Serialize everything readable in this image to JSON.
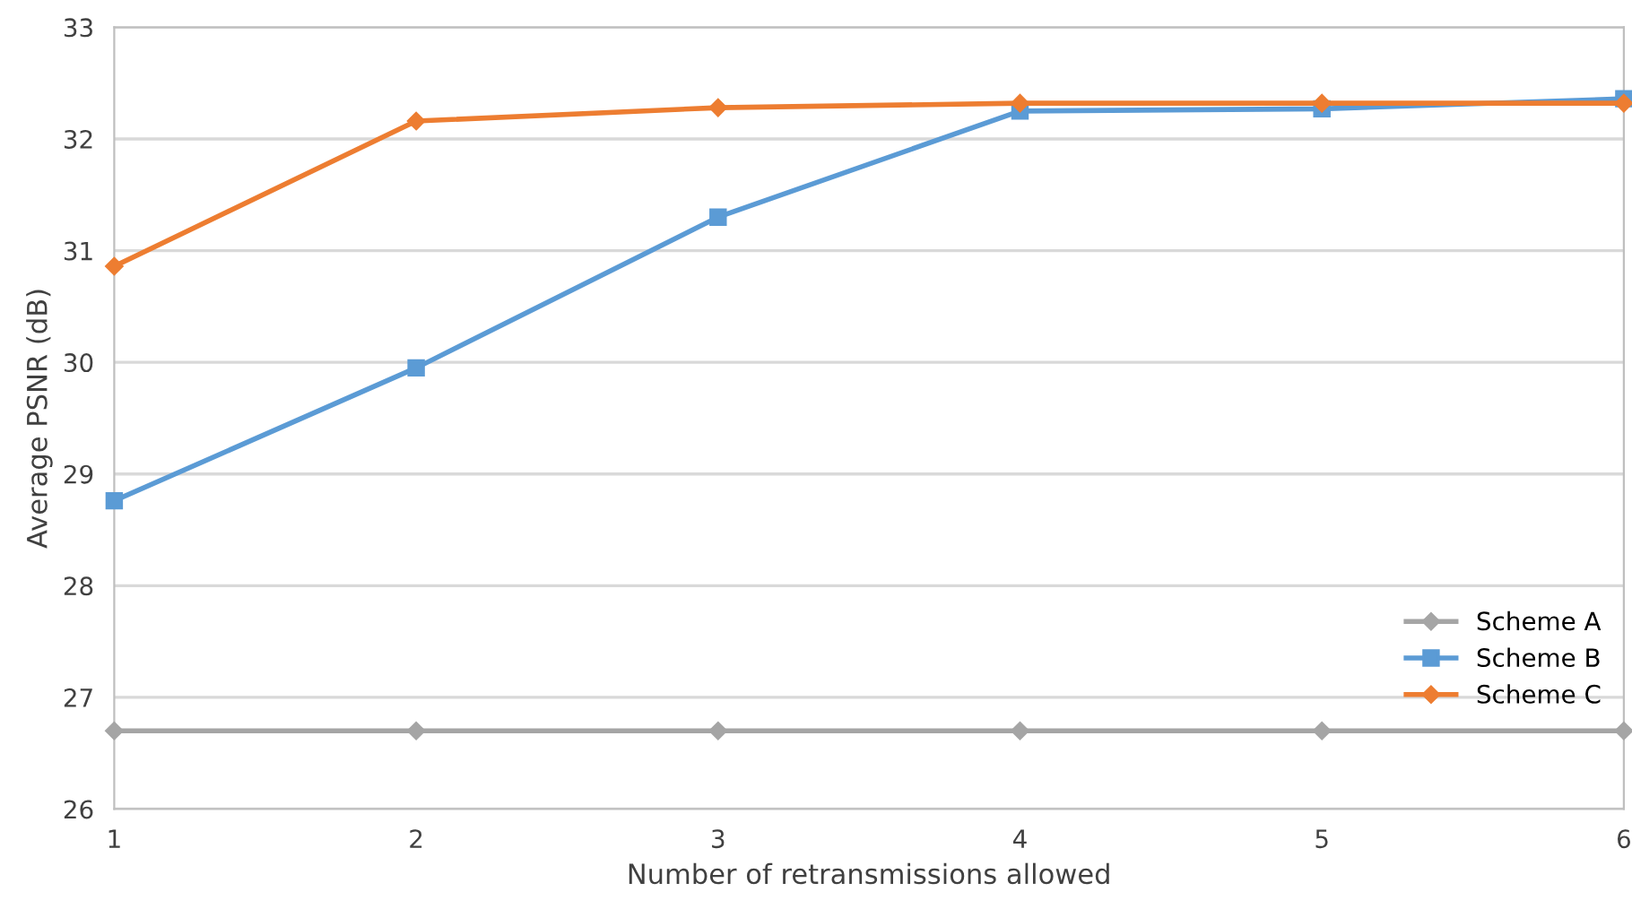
{
  "chart_data": {
    "type": "line",
    "xlabel": "Number of retransmissions allowed",
    "ylabel": "Average PSNR (dB)",
    "x": [
      1,
      2,
      3,
      4,
      5,
      6
    ],
    "series": [
      {
        "name": "Scheme A",
        "color": "#a5a5a5",
        "marker": "diamond",
        "values": [
          26.7,
          26.7,
          26.7,
          26.7,
          26.7,
          26.7
        ]
      },
      {
        "name": "Scheme B",
        "color": "#5b9bd5",
        "marker": "square",
        "values": [
          28.76,
          29.95,
          31.3,
          32.25,
          32.27,
          32.36
        ]
      },
      {
        "name": "Scheme C",
        "color": "#ed7d31",
        "marker": "diamond",
        "values": [
          30.86,
          32.16,
          32.28,
          32.32,
          32.32,
          32.32
        ]
      }
    ],
    "xlim": [
      1,
      6
    ],
    "xticks": [
      1,
      2,
      3,
      4,
      5,
      6
    ],
    "ylim": [
      26,
      33
    ],
    "yticks": [
      26,
      27,
      28,
      29,
      30,
      31,
      32,
      33
    ],
    "grid": "y",
    "legend": "bottom right",
    "line_style": "solid"
  }
}
